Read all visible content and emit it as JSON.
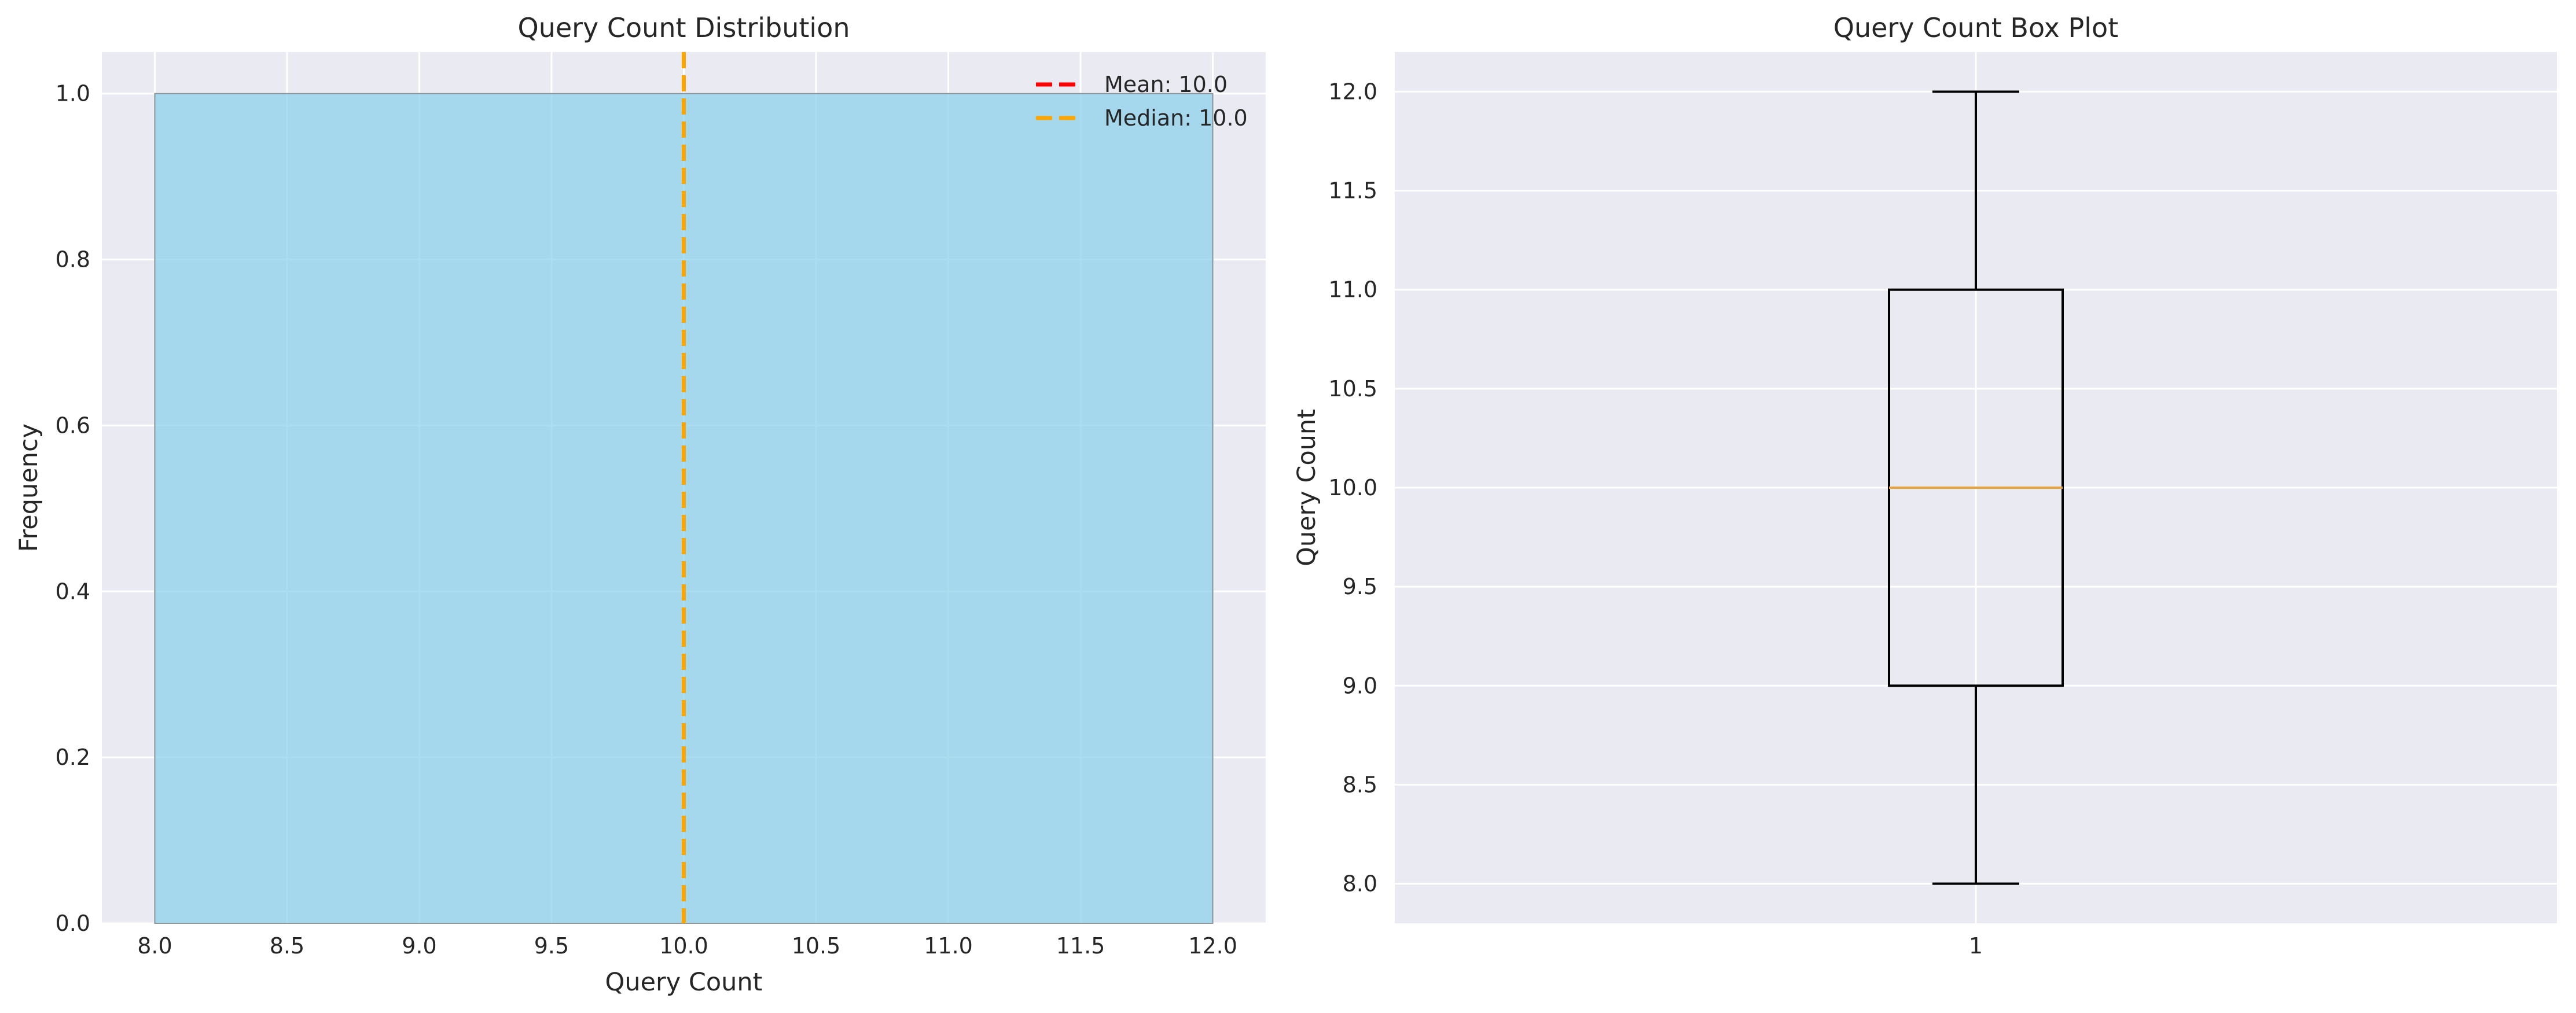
{
  "chart_data": [
    {
      "type": "histogram",
      "title": "Query Count Distribution",
      "xlabel": "Query Count",
      "ylabel": "Frequency",
      "xlim": [
        7.8,
        12.2
      ],
      "ylim": [
        0,
        1.05
      ],
      "xticks": [
        "8.0",
        "8.5",
        "9.0",
        "9.5",
        "10.0",
        "10.5",
        "11.0",
        "11.5",
        "12.0"
      ],
      "yticks": [
        "0.0",
        "0.2",
        "0.4",
        "0.6",
        "0.8",
        "1.0"
      ],
      "bins": [
        {
          "x_start": 8.0,
          "x_end": 12.0,
          "count": 1
        }
      ],
      "bar_color": "#87ceeb",
      "reference_lines": [
        {
          "label": "Mean: 10.0",
          "value": 10.0,
          "color": "#ff0000",
          "style": "dashed"
        },
        {
          "label": "Median: 10.0",
          "value": 10.0,
          "color": "#ffa500",
          "style": "dashed"
        }
      ],
      "legend_position": "top-right",
      "grid": true
    },
    {
      "type": "box",
      "title": "Query Count Box Plot",
      "xlabel": "",
      "ylabel": "Query Count",
      "ylim": [
        7.8,
        12.2
      ],
      "xticks": [
        "1"
      ],
      "yticks": [
        "8.0",
        "8.5",
        "9.0",
        "9.5",
        "10.0",
        "10.5",
        "11.0",
        "11.5",
        "12.0"
      ],
      "box": {
        "min": 8.0,
        "q1": 9.0,
        "median": 10.0,
        "q3": 11.0,
        "max": 12.0
      },
      "median_color": "#e8a33d",
      "grid": true
    }
  ]
}
